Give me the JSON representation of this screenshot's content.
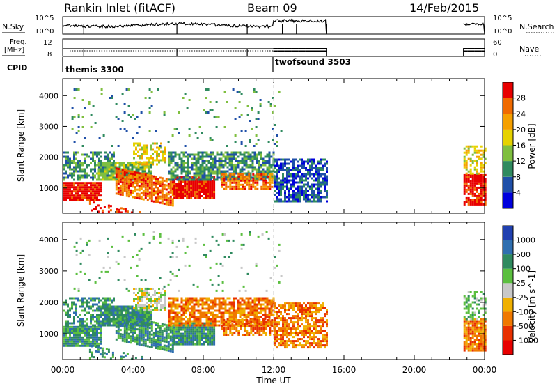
{
  "header": {
    "station": "Rankin Inlet (fitACF)",
    "beam": "Beam 09",
    "date": "14/Feb/2015"
  },
  "noise_panel": {
    "left_label": "N.Sky",
    "right_label": "N.Search",
    "left_ticks": [
      "10^5",
      "10^0"
    ],
    "right_ticks": [
      "10^5",
      "10^0"
    ]
  },
  "freq_panel": {
    "left_label_1": "Freq.",
    "left_label_2": "[MHz]",
    "right_label": "Nave",
    "left_ticks": [
      "12",
      "8"
    ],
    "right_ticks": [
      "60",
      "0"
    ]
  },
  "cpid": {
    "label": "CPID",
    "modes": [
      {
        "name": "themis 3300",
        "start_hour": 0
      },
      {
        "name": "twofsound 3503",
        "start_hour": 12
      }
    ]
  },
  "colors": {
    "power": [
      "#0000dd",
      "#1f4fa8",
      "#2f8a5f",
      "#7fbf3f",
      "#e6d200",
      "#f5a000",
      "#f06a00",
      "#e80000"
    ],
    "velocity": [
      "#2040b0",
      "#2f6fb0",
      "#2f8a5f",
      "#5bbf3f",
      "#c8c8c8",
      "#f0b000",
      "#f07800",
      "#e83000",
      "#e80000"
    ]
  },
  "chart_data": [
    {
      "type": "heatmap",
      "title": "Power",
      "xlabel": "Time UT",
      "ylabel": "Slant Range [km]",
      "x_ticks": [
        "00:00",
        "04:00",
        "08:00",
        "12:00",
        "16:00",
        "20:00",
        "00:00"
      ],
      "y_ticks": [
        1000,
        2000,
        3000,
        4000
      ],
      "xlim_hours": [
        0,
        24
      ],
      "ylim_km": [
        180,
        4550
      ],
      "colorbar_label": "Power [dB]",
      "colorbar_ticks": [
        "4",
        "8",
        "12",
        "16",
        "20",
        "24",
        "28"
      ],
      "colorbar_range": [
        0,
        32
      ]
    },
    {
      "type": "heatmap",
      "title": "Velocity",
      "xlabel": "Time UT",
      "ylabel": "Slant Range [km]",
      "x_ticks": [
        "00:00",
        "04:00",
        "08:00",
        "12:00",
        "16:00",
        "20:00",
        "00:00"
      ],
      "y_ticks": [
        1000,
        2000,
        3000,
        4000
      ],
      "xlim_hours": [
        0,
        24
      ],
      "ylim_km": [
        180,
        4550
      ],
      "colorbar_label": "Velocity [m s^-1]",
      "colorbar_ticks": [
        "1000",
        "500",
        "100",
        "25",
        "-25",
        "-100",
        "-500",
        "-1000"
      ]
    }
  ]
}
